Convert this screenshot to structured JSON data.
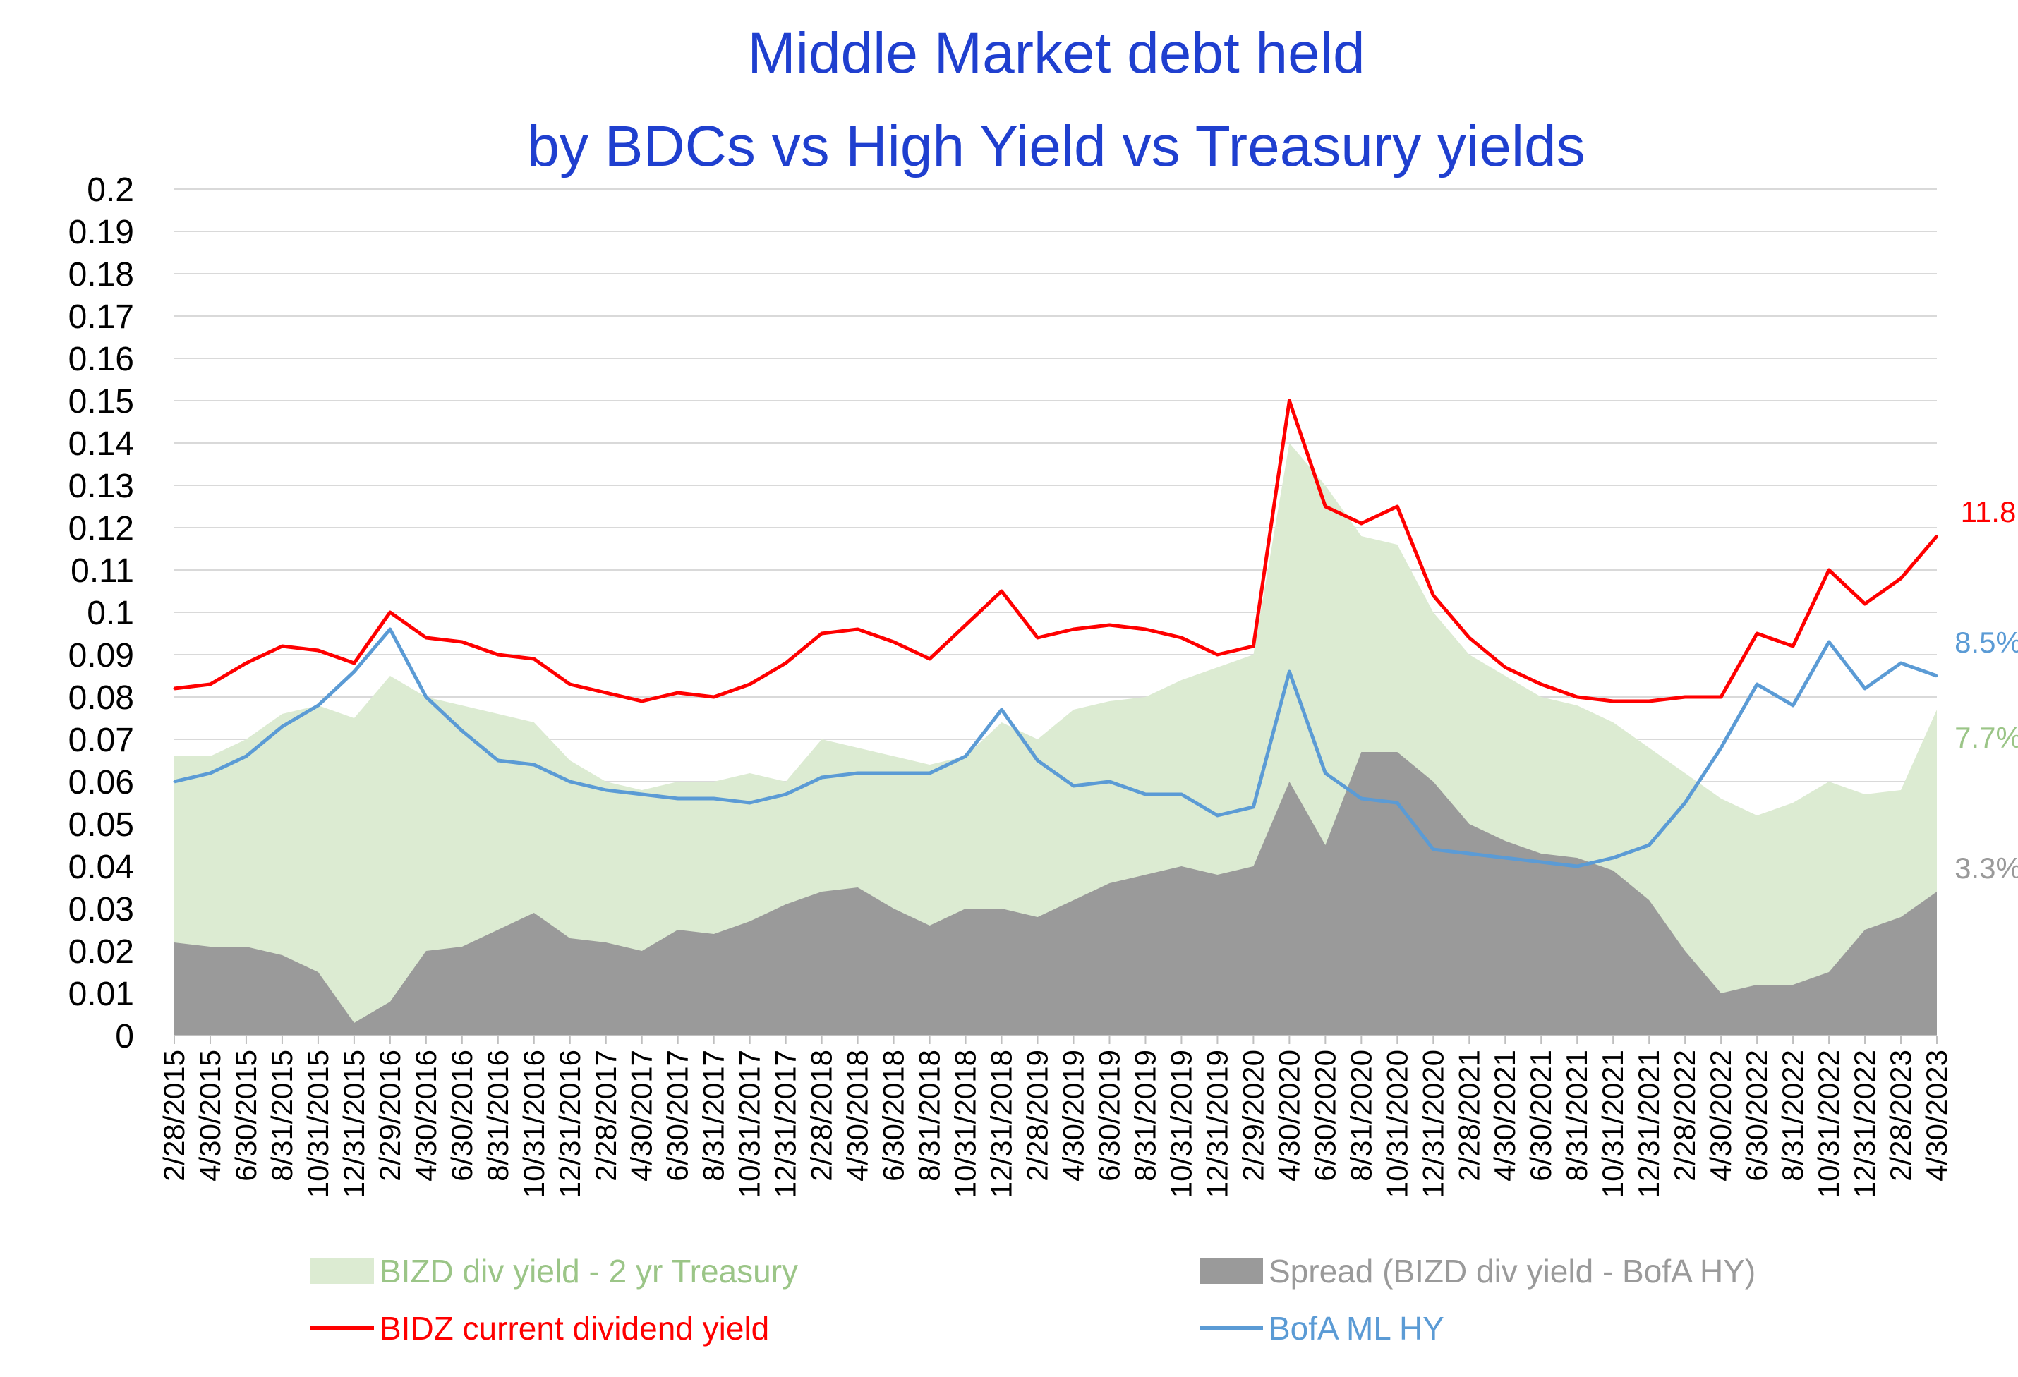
{
  "chart_data": {
    "type": "line",
    "title_lines": [
      "Middle Market debt held",
      "by BDCs vs High Yield vs Treasury yields"
    ],
    "xlabel": "",
    "ylabel": "",
    "ylim": [
      0,
      0.2
    ],
    "yticks": [
      "0",
      "0.01",
      "0.02",
      "0.03",
      "0.04",
      "0.05",
      "0.06",
      "0.07",
      "0.08",
      "0.09",
      "0.1",
      "0.11",
      "0.12",
      "0.13",
      "0.14",
      "0.15",
      "0.16",
      "0.17",
      "0.18",
      "0.19",
      "0.2"
    ],
    "xticks": [
      "2/28/2015",
      "4/30/2015",
      "6/30/2015",
      "8/31/2015",
      "10/31/2015",
      "12/31/2015",
      "2/29/2016",
      "4/30/2016",
      "6/30/2016",
      "8/31/2016",
      "10/31/2016",
      "12/31/2016",
      "2/28/2017",
      "4/30/2017",
      "6/30/2017",
      "8/31/2017",
      "10/31/2017",
      "12/31/2017",
      "2/28/2018",
      "4/30/2018",
      "6/30/2018",
      "8/31/2018",
      "10/31/2018",
      "12/31/2018",
      "2/28/2019",
      "4/30/2019",
      "6/30/2019",
      "8/31/2019",
      "10/31/2019",
      "12/31/2019",
      "2/29/2020",
      "4/30/2020",
      "6/30/2020",
      "8/31/2020",
      "10/31/2020",
      "12/31/2020",
      "2/28/2021",
      "4/30/2021",
      "6/30/2021",
      "8/31/2021",
      "10/31/2021",
      "12/31/2021",
      "2/28/2022",
      "4/30/2022",
      "6/30/2022",
      "8/31/2022",
      "10/31/2022",
      "12/31/2022",
      "2/28/2023",
      "4/30/2023"
    ],
    "grid": true,
    "legend_position": "bottom",
    "series": [
      {
        "name": "BIZD div yield - 2 yr Treasury",
        "kind": "area",
        "color": "#dcebd2",
        "label_color": "#9bc587",
        "end_label": "7.7%",
        "values": [
          0.066,
          0.066,
          0.07,
          0.076,
          0.078,
          0.075,
          0.085,
          0.08,
          0.078,
          0.076,
          0.074,
          0.065,
          0.06,
          0.058,
          0.06,
          0.06,
          0.062,
          0.06,
          0.07,
          0.068,
          0.066,
          0.064,
          0.066,
          0.074,
          0.07,
          0.077,
          0.079,
          0.08,
          0.084,
          0.087,
          0.09,
          0.14,
          0.13,
          0.118,
          0.116,
          0.1,
          0.09,
          0.085,
          0.08,
          0.078,
          0.074,
          0.068,
          0.062,
          0.056,
          0.052,
          0.055,
          0.06,
          0.057,
          0.058,
          0.077
        ]
      },
      {
        "name": "Spread (BIZD div yield - BofA HY)",
        "kind": "area",
        "color": "#9a9a9a",
        "label_color": "#9a9a9a",
        "end_label": "3.3%",
        "values": [
          0.022,
          0.021,
          0.021,
          0.019,
          0.015,
          0.003,
          0.008,
          0.02,
          0.021,
          0.025,
          0.029,
          0.023,
          0.022,
          0.02,
          0.025,
          0.024,
          0.027,
          0.031,
          0.034,
          0.035,
          0.03,
          0.026,
          0.03,
          0.03,
          0.028,
          0.032,
          0.036,
          0.038,
          0.04,
          0.038,
          0.04,
          0.06,
          0.045,
          0.067,
          0.067,
          0.06,
          0.05,
          0.046,
          0.043,
          0.042,
          0.039,
          0.032,
          0.02,
          0.01,
          0.012,
          0.012,
          0.015,
          0.025,
          0.028,
          0.034
        ]
      },
      {
        "name": "BIDZ current dividend yield",
        "kind": "line",
        "color": "#ff0000",
        "label_color": "#ff0000",
        "end_label": "11.8",
        "values": [
          0.082,
          0.083,
          0.088,
          0.092,
          0.091,
          0.088,
          0.1,
          0.094,
          0.093,
          0.09,
          0.089,
          0.083,
          0.081,
          0.079,
          0.081,
          0.08,
          0.083,
          0.088,
          0.095,
          0.096,
          0.093,
          0.089,
          0.097,
          0.105,
          0.094,
          0.096,
          0.097,
          0.096,
          0.094,
          0.09,
          0.092,
          0.15,
          0.125,
          0.121,
          0.125,
          0.104,
          0.094,
          0.087,
          0.083,
          0.08,
          0.079,
          0.079,
          0.08,
          0.08,
          0.095,
          0.092,
          0.11,
          0.102,
          0.108,
          0.118
        ]
      },
      {
        "name": "BofA ML HY",
        "kind": "line",
        "color": "#5b9bd5",
        "label_color": "#5b9bd5",
        "end_label": "8.5%",
        "values": [
          0.06,
          0.062,
          0.066,
          0.073,
          0.078,
          0.086,
          0.096,
          0.08,
          0.072,
          0.065,
          0.064,
          0.06,
          0.058,
          0.057,
          0.056,
          0.056,
          0.055,
          0.057,
          0.061,
          0.062,
          0.062,
          0.062,
          0.066,
          0.077,
          0.065,
          0.059,
          0.06,
          0.057,
          0.057,
          0.052,
          0.054,
          0.086,
          0.062,
          0.056,
          0.055,
          0.044,
          0.043,
          0.042,
          0.041,
          0.04,
          0.042,
          0.045,
          0.055,
          0.068,
          0.083,
          0.078,
          0.093,
          0.082,
          0.088,
          0.085
        ]
      }
    ]
  }
}
